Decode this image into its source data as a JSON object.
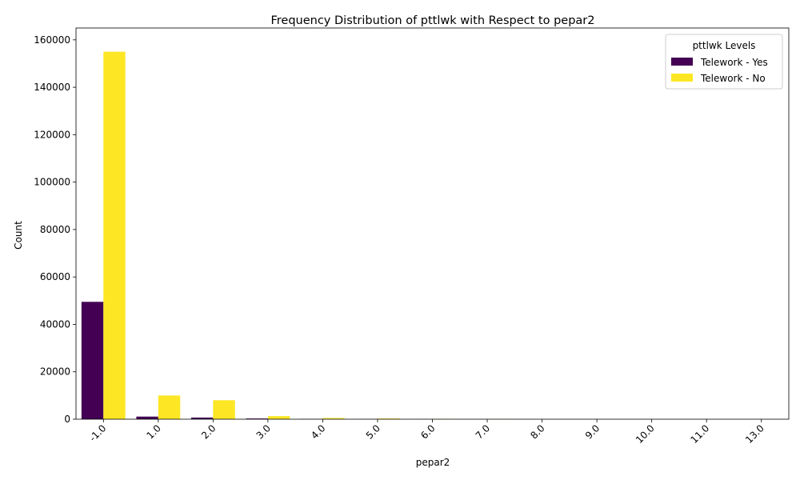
{
  "chart_data": {
    "type": "bar",
    "title": "Frequency Distribution of pttlwk with Respect to pepar2",
    "xlabel": "pepar2",
    "ylabel": "Count",
    "categories": [
      "-1.0",
      "1.0",
      "2.0",
      "3.0",
      "4.0",
      "5.0",
      "6.0",
      "7.0",
      "8.0",
      "9.0",
      "10.0",
      "11.0",
      "13.0"
    ],
    "ylim": [
      0,
      165000
    ],
    "yticks": [
      0,
      20000,
      40000,
      60000,
      80000,
      100000,
      120000,
      140000,
      160000
    ],
    "grid": false,
    "legend": {
      "title": "pttlwk Levels",
      "placement": "top-right"
    },
    "series": [
      {
        "name": "Telework - Yes",
        "color": "#440154",
        "values": [
          49500,
          1100,
          700,
          300,
          80,
          40,
          20,
          10,
          5,
          5,
          3,
          2,
          1
        ]
      },
      {
        "name": "Telework - No",
        "color": "#fde725",
        "values": [
          155000,
          10000,
          8000,
          1300,
          500,
          300,
          150,
          80,
          40,
          25,
          15,
          10,
          5
        ]
      }
    ]
  }
}
